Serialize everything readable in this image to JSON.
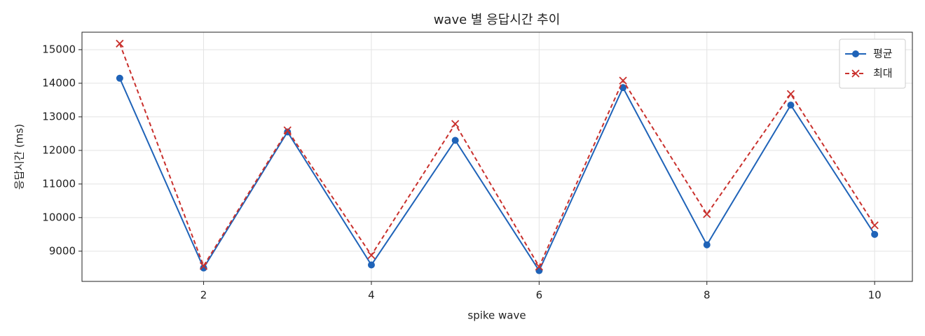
{
  "chart_data": {
    "type": "line",
    "title": "wave 별 응답시간 추이",
    "x_label": "spike wave",
    "y_label": "응답시간 (ms)",
    "x": [
      1,
      2,
      3,
      4,
      5,
      6,
      7,
      8,
      9,
      10
    ],
    "series": [
      {
        "name": "평균",
        "color": "#1f63b8",
        "marker": "circle",
        "dash": false,
        "values": [
          14150,
          8500,
          12550,
          8590,
          12300,
          8420,
          13870,
          9190,
          13350,
          9500
        ]
      },
      {
        "name": "최대",
        "color": "#c9302c",
        "marker": "x",
        "dash": true,
        "values": [
          15180,
          8560,
          12600,
          8880,
          12790,
          8540,
          14080,
          10100,
          13680,
          9770
        ]
      }
    ],
    "xlim": [
      0.55,
      10.45
    ],
    "xticks": [
      2,
      4,
      6,
      8,
      10
    ],
    "ylim": [
      8100,
      15520
    ],
    "yticks": [
      9000,
      10000,
      11000,
      12000,
      13000,
      14000,
      15000
    ],
    "grid": true,
    "legend": "upper right"
  }
}
